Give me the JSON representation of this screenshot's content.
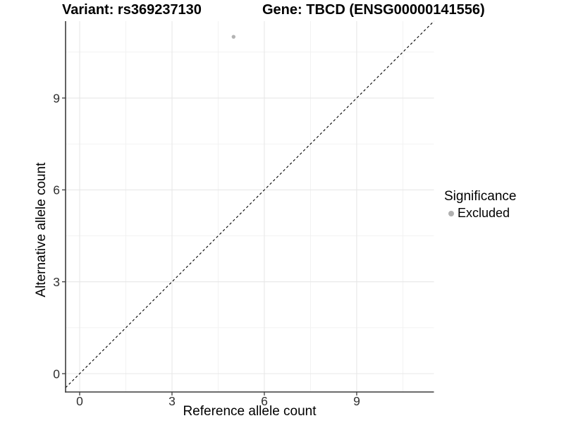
{
  "chart_data": {
    "type": "scatter",
    "titles": {
      "left": "Variant: rs369237130",
      "right": "Gene: TBCD (ENSG00000141556)"
    },
    "xlabel": "Reference allele count",
    "ylabel": "Alternative allele count",
    "x_ticks": [
      0,
      3,
      6,
      9
    ],
    "y_ticks": [
      0,
      3,
      6,
      9
    ],
    "x_minor_ticks": [
      1.5,
      4.5,
      7.5,
      10.5
    ],
    "y_minor_ticks": [
      1.5,
      4.5,
      7.5,
      10.5
    ],
    "xlim": [
      -0.46,
      11.51
    ],
    "ylim": [
      -0.6,
      11.51
    ],
    "grid": "major+minor",
    "points": [
      {
        "x": 5,
        "y": 11,
        "series": "Excluded"
      }
    ],
    "identity_line": {
      "slope": 1,
      "intercept": 0,
      "style": "dashed",
      "color": "#000000"
    },
    "legend": {
      "title": "Significance",
      "position": "right",
      "items": [
        {
          "label": "Excluded",
          "color": "#b0b0b0"
        }
      ]
    },
    "colors": {
      "point": "#b3b3b3",
      "grid_major": "#e7e7e7",
      "grid_minor": "#f1f1f1",
      "axis": "#3c3c3c",
      "tick_label": "#303030"
    }
  }
}
